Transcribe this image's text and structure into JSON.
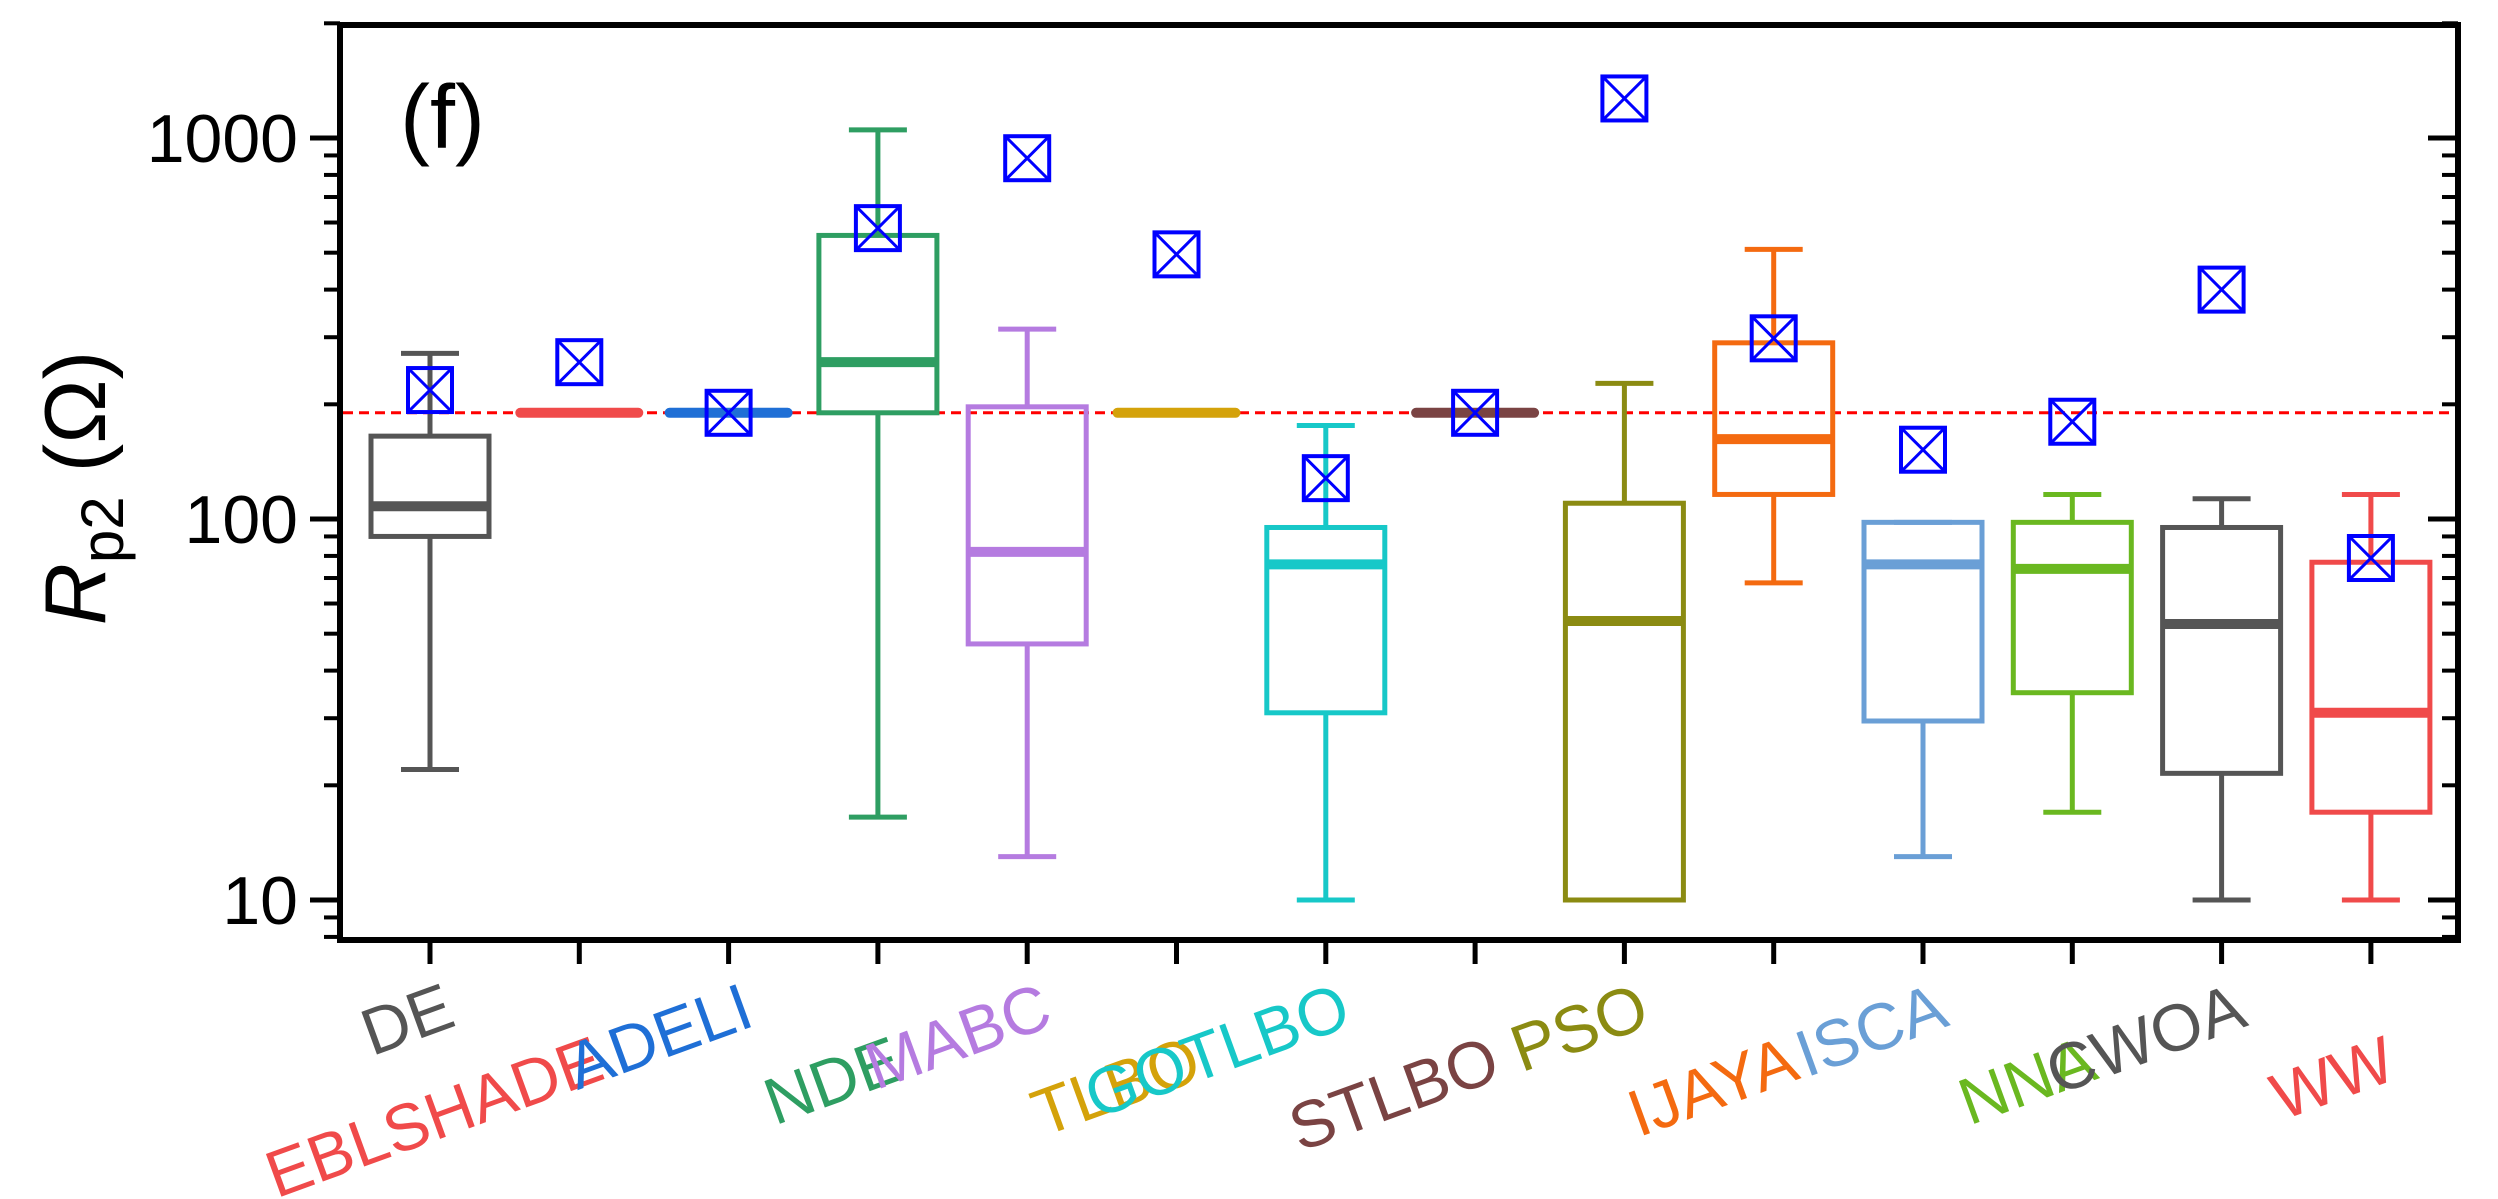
{
  "panel_label": "(f)",
  "chart_data": {
    "type": "box",
    "y_scale": "log",
    "ylim": [
      8,
      2000
    ],
    "yticks": [
      {
        "value": 10,
        "label": "10"
      },
      {
        "value": 100,
        "label": "100"
      },
      {
        "value": 1000,
        "label": "1000"
      }
    ],
    "ylabel_main": "R",
    "ylabel_sub": "p2",
    "ylabel_unit": "(Ω)",
    "reference_line": {
      "value": 190,
      "color": "#ff0000",
      "style": "dashed"
    },
    "mean_marker": {
      "symbol": "square-x",
      "color": "#0000ff"
    },
    "boxes": [
      {
        "name": "DE",
        "color": "#555555",
        "whisker_low": 22,
        "q1": 90,
        "median": 108,
        "q3": 165,
        "whisker_high": 272,
        "mean": 218
      },
      {
        "name": "EBLSHADE",
        "color": "#f04a4a",
        "whisker_low": 190,
        "q1": 190,
        "median": 190,
        "q3": 190,
        "whisker_high": 190,
        "mean": 258
      },
      {
        "name": "ADELI",
        "color": "#1f6fd6",
        "whisker_low": 190,
        "q1": 190,
        "median": 190,
        "q3": 190,
        "whisker_high": 190,
        "mean": 190
      },
      {
        "name": "NDE",
        "color": "#2e9e62",
        "whisker_low": 16.5,
        "q1": 190,
        "median": 258,
        "q3": 555,
        "whisker_high": 1050,
        "mean": 580
      },
      {
        "name": "MABC",
        "color": "#b57be0",
        "whisker_low": 13,
        "q1": 47,
        "median": 82,
        "q3": 197,
        "whisker_high": 315,
        "mean": 885
      },
      {
        "name": "TLBO",
        "color": "#d4a20a",
        "whisker_low": 190,
        "q1": 190,
        "median": 190,
        "q3": 190,
        "whisker_high": 190,
        "mean": 495
      },
      {
        "name": "GOTLBO",
        "color": "#17c8c8",
        "whisker_low": 10,
        "q1": 31,
        "median": 76,
        "q3": 95,
        "whisker_high": 176,
        "mean": 128
      },
      {
        "name": "STLBO",
        "color": "#7a4343",
        "whisker_low": 190,
        "q1": 190,
        "median": 190,
        "q3": 190,
        "whisker_high": 190,
        "mean": 190
      },
      {
        "name": "PSO",
        "color": "#8b8b12",
        "whisker_low": 10,
        "q1": 10,
        "median": 54,
        "q3": 110,
        "whisker_high": 227,
        "mean": 1270
      },
      {
        "name": "IJAYA",
        "color": "#f46a10",
        "whisker_low": 68,
        "q1": 116,
        "median": 162,
        "q3": 290,
        "whisker_high": 510,
        "mean": 298
      },
      {
        "name": "ISCA",
        "color": "#6a9fd6",
        "whisker_low": 13,
        "q1": 29.5,
        "median": 76,
        "q3": 98,
        "whisker_high": 98,
        "mean": 152
      },
      {
        "name": "NNA",
        "color": "#6ab820",
        "whisker_low": 17,
        "q1": 35,
        "median": 74,
        "q3": 98,
        "whisker_high": 116,
        "mean": 180
      },
      {
        "name": "CWOA",
        "color": "#555555",
        "whisker_low": 10,
        "q1": 21.5,
        "median": 53,
        "q3": 95,
        "whisker_high": 113,
        "mean": 400
      },
      {
        "name": "WW",
        "color": "#f04a4a",
        "whisker_low": 10,
        "q1": 17,
        "median": 31,
        "q3": 77,
        "whisker_high": 116,
        "mean": 79
      }
    ]
  }
}
